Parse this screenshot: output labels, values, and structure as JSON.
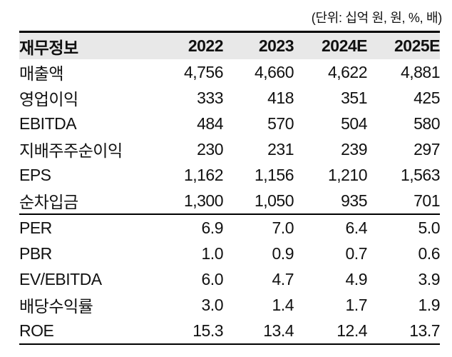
{
  "unit_note": "(단위: 십억 원, 원, %, 배)",
  "table": {
    "header": [
      "재무정보",
      "2022",
      "2023",
      "2024E",
      "2025E"
    ],
    "rows": [
      {
        "label": "매출액",
        "values": [
          "4,756",
          "4,660",
          "4,622",
          "4,881"
        ]
      },
      {
        "label": "영업이익",
        "values": [
          "333",
          "418",
          "351",
          "425"
        ]
      },
      {
        "label": "EBITDA",
        "values": [
          "484",
          "570",
          "504",
          "580"
        ]
      },
      {
        "label": "지배주주순이익",
        "values": [
          "230",
          "231",
          "239",
          "297"
        ]
      },
      {
        "label": "EPS",
        "values": [
          "1,162",
          "1,156",
          "1,210",
          "1,563"
        ]
      },
      {
        "label": "순차입금",
        "values": [
          "1,300",
          "1,050",
          "935",
          "701"
        ]
      },
      {
        "label": "PER",
        "values": [
          "6.9",
          "7.0",
          "6.4",
          "5.0"
        ]
      },
      {
        "label": "PBR",
        "values": [
          "1.0",
          "0.9",
          "0.7",
          "0.6"
        ]
      },
      {
        "label": "EV/EBITDA",
        "values": [
          "6.0",
          "4.7",
          "4.9",
          "3.9"
        ]
      },
      {
        "label": "배당수익률",
        "values": [
          "3.0",
          "1.4",
          "1.7",
          "1.9"
        ]
      },
      {
        "label": "ROE",
        "values": [
          "15.3",
          "13.4",
          "12.4",
          "13.7"
        ]
      }
    ],
    "divider_after_row_index": 5
  },
  "colors": {
    "header_bg": "#e8e8e8",
    "border": "#000000",
    "text": "#111111"
  }
}
